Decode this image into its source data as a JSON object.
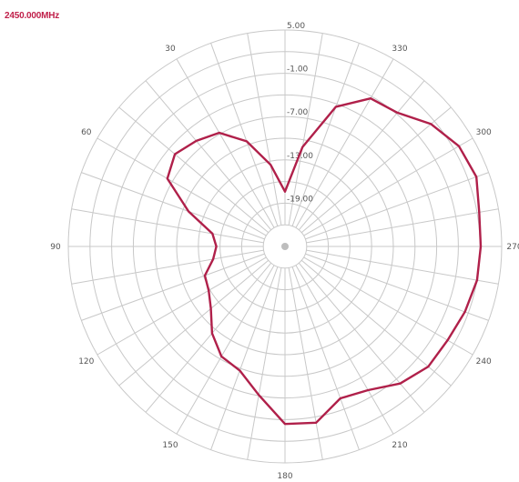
{
  "frequency_label": "2450.000MHz",
  "colors": {
    "trace": "#b0204a",
    "grid": "#c8c8c8",
    "label": "#c0204a"
  },
  "chart_data": {
    "type": "polar-line",
    "title": "2450.000MHz",
    "radial_unit": "dB",
    "r_range": [
      -25,
      5
    ],
    "r_ticks": [
      5.0,
      -1.0,
      -7.0,
      -13.0,
      -19.0
    ],
    "r_tick_labels": [
      "5.00",
      "-1.00",
      "-7.00",
      "-13.00",
      "-19.00"
    ],
    "angle_ticks": [
      0,
      30,
      60,
      90,
      120,
      150,
      180,
      210,
      240,
      270,
      300,
      330
    ],
    "angle_tick_labels": [
      "",
      "30",
      "60",
      "90",
      "120",
      "150",
      "180",
      "210",
      "240",
      "270",
      "300",
      "330"
    ],
    "angle_direction": "counterclockwise",
    "zero_angle_position": "top",
    "spoke_step_deg": 10,
    "grid": true,
    "series": [
      {
        "angles_deg": [
          0,
          10,
          20,
          30,
          40,
          50,
          60,
          70,
          80,
          90,
          100,
          110,
          120,
          130,
          140,
          150,
          160,
          170,
          180,
          190,
          200,
          210,
          220,
          230,
          240,
          250,
          260,
          270,
          280,
          290,
          300,
          310,
          320,
          330,
          340,
          350,
          360
        ],
        "values_db": [
          -17.4,
          -13.5,
          -9.5,
          -6.8,
          -5.9,
          -5.1,
          -6.2,
          -10.8,
          -14.8,
          -15.5,
          -14.9,
          -13.2,
          -12.8,
          -11.6,
          -9.3,
          -7.4,
          -6.7,
          -4.1,
          -0.4,
          -0.2,
          -2.6,
          -2.0,
          -0.2,
          0.9,
          1.0,
          1.5,
          2.0,
          2.1,
          2.3,
          3.2,
          2.8,
          1.4,
          -0.8,
          -1.3,
          -4.4,
          -11.0,
          -17.4
        ]
      }
    ]
  }
}
